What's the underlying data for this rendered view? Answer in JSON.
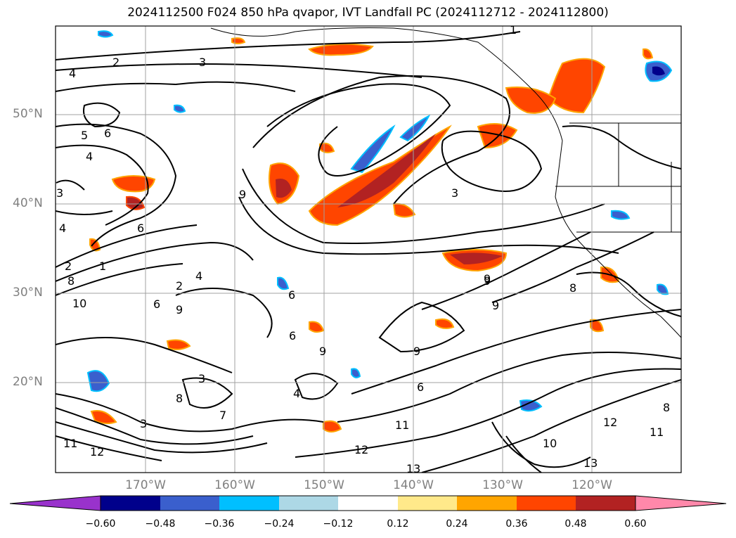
{
  "title": "2024112500 F024 850 hPa qvapor, IVT Landfall PC (2024112712 - 2024112800)",
  "lat_labels": [
    "50°N",
    "40°N",
    "30°N",
    "20°N"
  ],
  "lon_labels": [
    "170°W",
    "160°W",
    "150°W",
    "140°W",
    "130°W",
    "120°W"
  ],
  "colorbar": {
    "ticks": [
      "−0.60",
      "−0.48",
      "−0.36",
      "−0.24",
      "−0.12",
      "0.12",
      "0.24",
      "0.36",
      "0.48",
      "0.60"
    ],
    "colors": [
      "#9932cc",
      "#00008b",
      "#3a5fcd",
      "#00bfff",
      "#add8e6",
      "#ffffff",
      "#ffe98a",
      "#ffa500",
      "#ff4500",
      "#b22222",
      "#ff88aa"
    ]
  },
  "contour_labels": [
    "2",
    "3",
    "4",
    "5",
    "6",
    "3",
    "4",
    "6",
    "9",
    "3",
    "4",
    "9",
    "3",
    "2",
    "1",
    "8",
    "10",
    "6",
    "9",
    "4",
    "2",
    "6",
    "9",
    "6",
    "8",
    "9",
    "11",
    "12",
    "13",
    "11",
    "10",
    "12",
    "13",
    "11",
    "8",
    "12",
    "9",
    "9",
    "6",
    "4",
    "3",
    "7",
    "8",
    "1"
  ],
  "chart_data": {
    "type": "map",
    "title": "2024112500 F024 850 hPa qvapor, IVT Landfall PC (2024112712 - 2024112800)",
    "lon_range": [
      -180,
      -110
    ],
    "lat_range": [
      10,
      60
    ],
    "lon_ticks": [
      -170,
      -160,
      -150,
      -140,
      -130,
      -120
    ],
    "lat_ticks": [
      20,
      30,
      40,
      50
    ],
    "grid": true,
    "colorbar_levels": [
      -0.6,
      -0.48,
      -0.36,
      -0.24,
      -0.12,
      0.12,
      0.24,
      0.36,
      0.48,
      0.6
    ],
    "colorbar_extend": "both"
  }
}
